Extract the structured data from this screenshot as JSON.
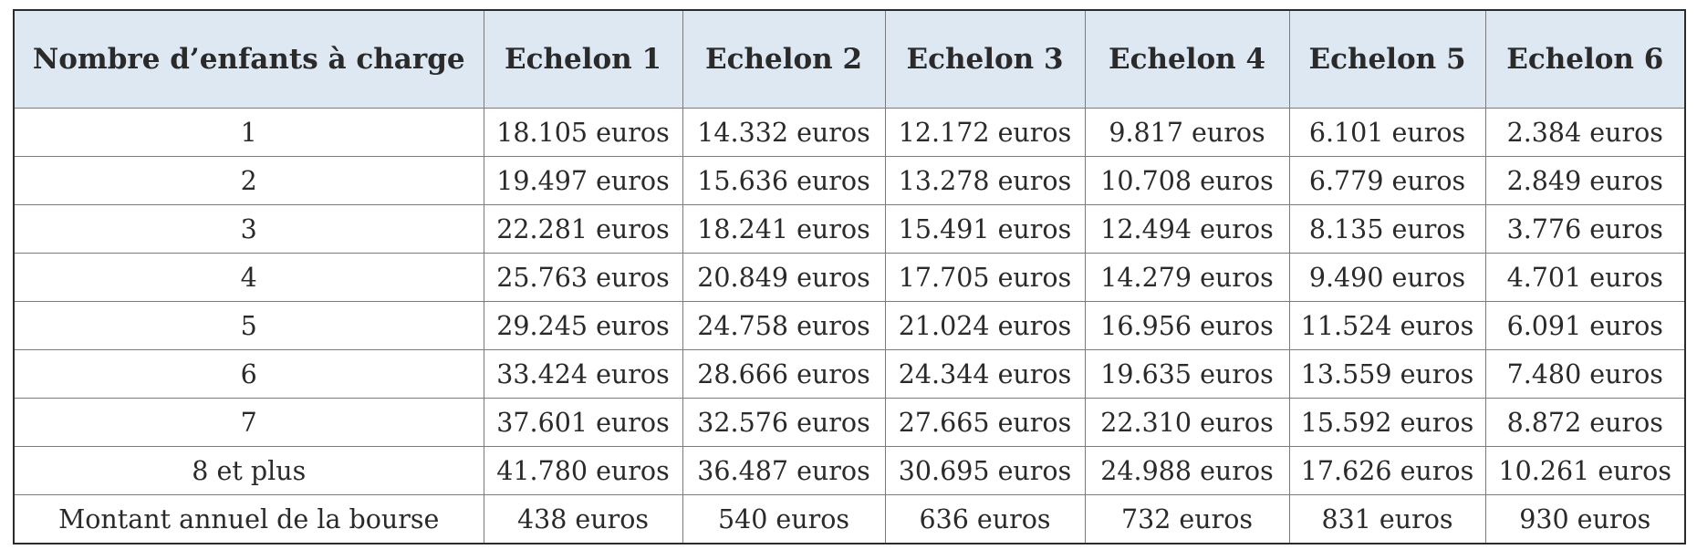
{
  "table": {
    "headers": [
      "Nombre d’enfants à charge",
      "Echelon 1",
      "Echelon 2",
      "Echelon 3",
      "Echelon 4",
      "Echelon 5",
      "Echelon 6"
    ],
    "rows": [
      [
        "1",
        "18.105 euros",
        "14.332 euros",
        "12.172 euros",
        "9.817 euros",
        "6.101 euros",
        "2.384 euros"
      ],
      [
        "2",
        "19.497 euros",
        "15.636 euros",
        "13.278 euros",
        "10.708 euros",
        "6.779 euros",
        "2.849 euros"
      ],
      [
        "3",
        "22.281 euros",
        "18.241 euros",
        "15.491 euros",
        "12.494 euros",
        "8.135 euros",
        "3.776 euros"
      ],
      [
        "4",
        "25.763 euros",
        "20.849 euros",
        "17.705 euros",
        "14.279 euros",
        "9.490 euros",
        "4.701 euros"
      ],
      [
        "5",
        "29.245 euros",
        "24.758 euros",
        "21.024 euros",
        "16.956 euros",
        "11.524 euros",
        "6.091 euros"
      ],
      [
        "6",
        "33.424 euros",
        "28.666 euros",
        "24.344 euros",
        "19.635 euros",
        "13.559 euros",
        "7.480 euros"
      ],
      [
        "7",
        "37.601 euros",
        "32.576 euros",
        "27.665 euros",
        "22.310 euros",
        "15.592 euros",
        "8.872 euros"
      ],
      [
        "8 et plus",
        "41.780 euros",
        "36.487 euros",
        "30.695 euros",
        "24.988 euros",
        "17.626 euros",
        "10.261 euros"
      ],
      [
        "Montant annuel de la bourse",
        "438 euros",
        "540 euros",
        "636 euros",
        "732 euros",
        "831 euros",
        "930 euros"
      ]
    ]
  },
  "colors": {
    "header_background": "#dde8f3",
    "border": "#7c7c7c",
    "outer_border": "#2b2b2b"
  }
}
